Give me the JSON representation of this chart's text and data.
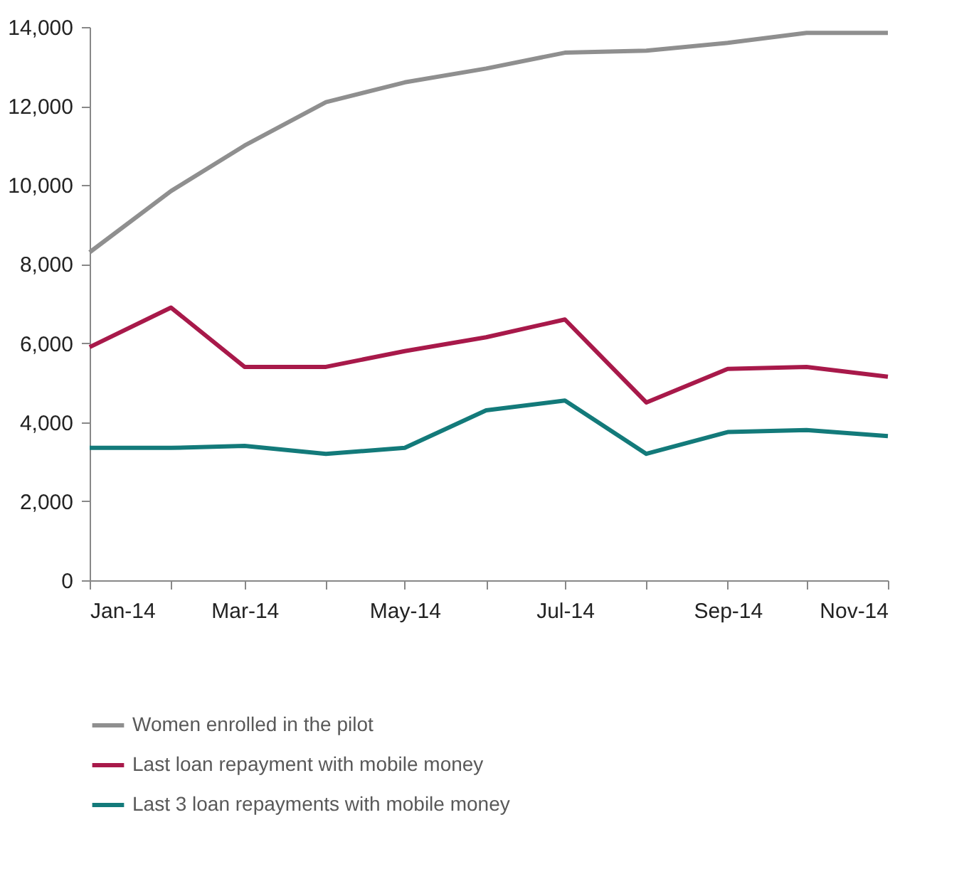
{
  "chart_data": {
    "type": "line",
    "x": [
      "2014-01",
      "2014-02",
      "2014-03",
      "2014-04",
      "2014-05",
      "2014-06",
      "2014-07",
      "2014-08",
      "2014-09",
      "2014-10",
      "2014-11"
    ],
    "series": [
      {
        "name": "Women enrolled in the pilot",
        "color": "#8f8f8f",
        "values": [
          8300,
          9850,
          11000,
          12100,
          12600,
          12950,
          13350,
          13400,
          13600,
          13850,
          13850
        ]
      },
      {
        "name": "Last loan repayment  with mobile money",
        "color": "#a8194a",
        "values": [
          5900,
          6900,
          5400,
          5400,
          5800,
          6150,
          6600,
          4500,
          5350,
          5400,
          5150
        ]
      },
      {
        "name": "Last 3 loan repayments  with mobile money",
        "color": "#137a7a",
        "values": [
          3350,
          3350,
          3400,
          3200,
          3350,
          4300,
          4550,
          3200,
          3750,
          3800,
          3650
        ]
      }
    ],
    "xlim": [
      "2014-01",
      "2014-11"
    ],
    "xticks": [
      {
        "value": "2014-01",
        "label": "Jan-14"
      },
      {
        "value": "2014-02",
        "label": null
      },
      {
        "value": "2014-03",
        "label": "Mar-14"
      },
      {
        "value": "2014-04",
        "label": null
      },
      {
        "value": "2014-05",
        "label": "May-14"
      },
      {
        "value": "2014-06",
        "label": null
      },
      {
        "value": "2014-07",
        "label": "Jul-14"
      },
      {
        "value": "2014-08",
        "label": null
      },
      {
        "value": "2014-09",
        "label": "Sep-14"
      },
      {
        "value": "2014-10",
        "label": null
      },
      {
        "value": "2014-11",
        "label": "Nov-14"
      }
    ],
    "ylim": [
      0,
      14000
    ],
    "yticks": [
      0,
      {
        "value": 2000,
        "label": "2,000"
      },
      {
        "value": 4000,
        "label": "4,000"
      },
      {
        "value": 6000,
        "label": "6,000"
      },
      {
        "value": 8000,
        "label": "8,000"
      },
      {
        "value": 10000,
        "label": "10,000"
      },
      {
        "value": 12000,
        "label": "12,000"
      },
      {
        "value": 14000,
        "label": "14,000"
      }
    ],
    "grid": false,
    "legend": "bottom",
    "marker": "none",
    "line_style": "solid"
  }
}
